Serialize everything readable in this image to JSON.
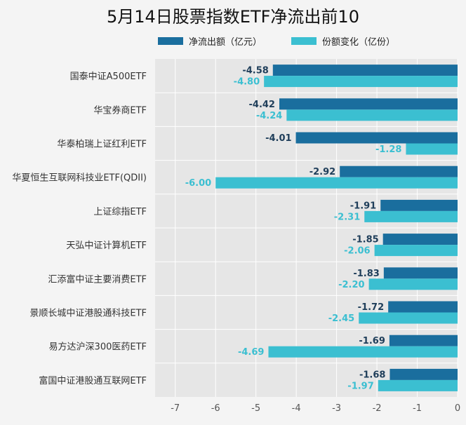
{
  "colors": {
    "series1": "#1a6e9e",
    "series2": "#3bbfd1",
    "plot_bg": "#e6e6e6",
    "page_bg": "#f4f4f4"
  },
  "chart_data": {
    "type": "bar",
    "orientation": "horizontal",
    "title": "5月14日股票指数ETF净流出前10",
    "categories": [
      "国泰中证A500ETF",
      "华宝券商ETF",
      "华泰柏瑞上证红利ETF",
      "华夏恒生互联网科技业ETF(QDII)",
      "上证综指ETF",
      "天弘中证计算机ETF",
      "汇添富中证主要消费ETF",
      "景顺长城中证港股通科技ETF",
      "易方达沪深300医药ETF",
      "富国中证港股通互联网ETF"
    ],
    "series": [
      {
        "name": "净流出额（亿元）",
        "color": "#1a6e9e",
        "values": [
          -4.58,
          -4.42,
          -4.01,
          -2.92,
          -1.91,
          -1.85,
          -1.83,
          -1.72,
          -1.69,
          -1.68
        ],
        "labels": [
          "-4.58",
          "-4.42",
          "-4.01",
          "-2.92",
          "-1.91",
          "-1.85",
          "-1.83",
          "-1.72",
          "-1.69",
          "-1.68"
        ]
      },
      {
        "name": "份额变化（亿份）",
        "color": "#3bbfd1",
        "values": [
          -4.8,
          -4.24,
          -1.28,
          -6.0,
          -2.31,
          -2.06,
          -2.2,
          -2.45,
          -4.69,
          -1.97
        ],
        "labels": [
          "-4.80",
          "-4.24",
          "-1.28",
          "-6.00",
          "-2.31",
          "-2.06",
          "-2.20",
          "-2.45",
          "-4.69",
          "-1.97"
        ]
      }
    ],
    "xlim": [
      -7.5,
      0
    ],
    "xticks": [
      -7,
      -6,
      -5,
      -4,
      -3,
      -2,
      -1,
      0
    ],
    "xtick_labels": [
      "-7",
      "-6",
      "-5",
      "-4",
      "-3",
      "-2",
      "-1",
      "0"
    ],
    "grid": true,
    "legend_position": "top"
  }
}
